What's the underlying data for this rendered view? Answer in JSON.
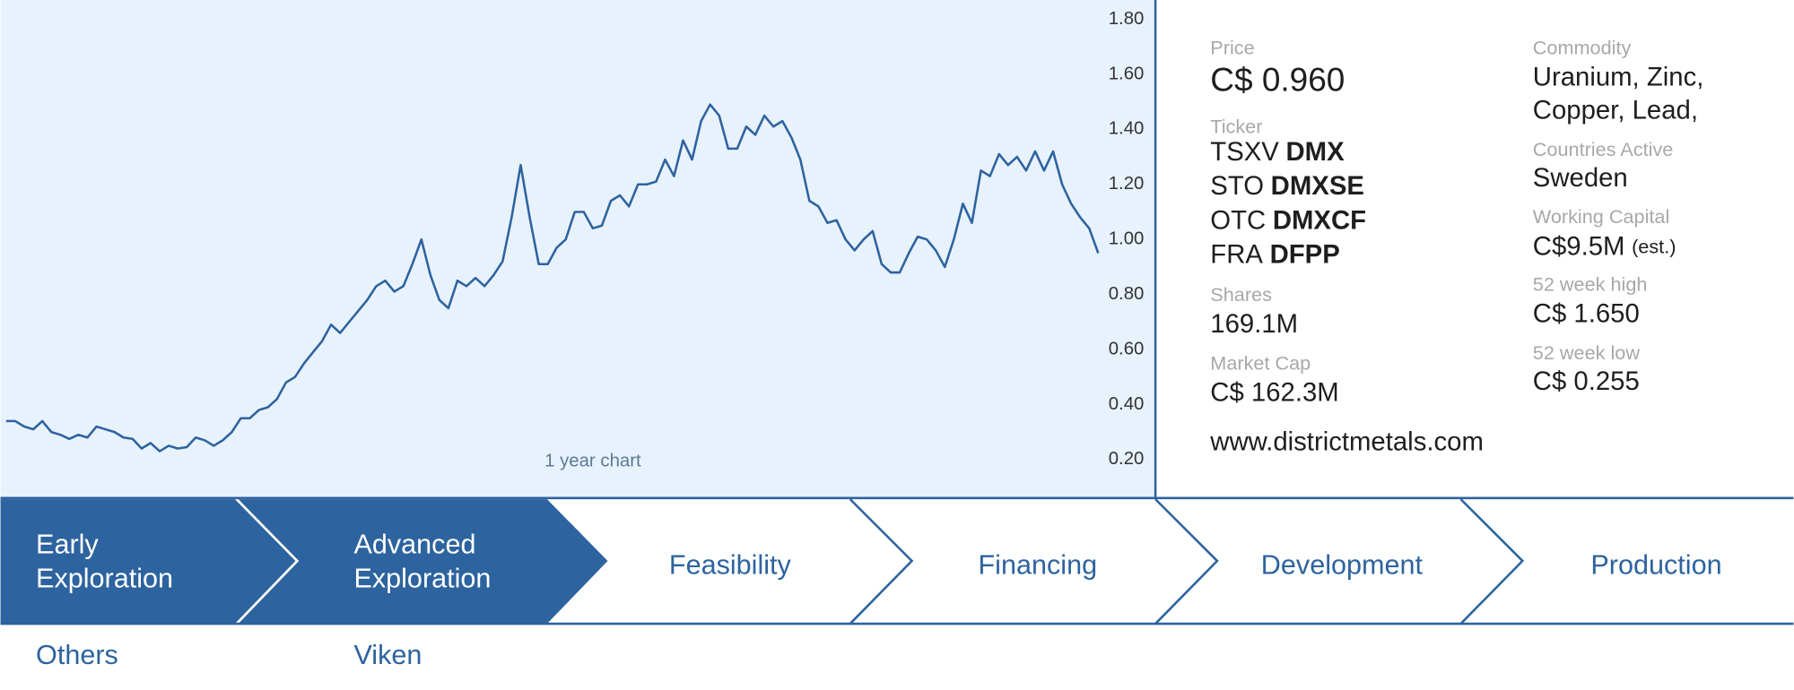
{
  "chart_data": {
    "type": "line",
    "note": "1 year chart",
    "color": "#2d639e",
    "values": [
      0.34,
      0.34,
      0.32,
      0.31,
      0.34,
      0.3,
      0.29,
      0.275,
      0.29,
      0.28,
      0.32,
      0.31,
      0.3,
      0.28,
      0.275,
      0.24,
      0.26,
      0.23,
      0.25,
      0.24,
      0.245,
      0.28,
      0.27,
      0.25,
      0.27,
      0.3,
      0.35,
      0.35,
      0.38,
      0.39,
      0.42,
      0.48,
      0.5,
      0.55,
      0.59,
      0.63,
      0.69,
      0.66,
      0.7,
      0.74,
      0.78,
      0.83,
      0.85,
      0.81,
      0.83,
      0.91,
      1.0,
      0.87,
      0.78,
      0.75,
      0.85,
      0.83,
      0.86,
      0.83,
      0.87,
      0.92,
      1.08,
      1.27,
      1.08,
      0.91,
      0.91,
      0.97,
      1.0,
      1.1,
      1.1,
      1.04,
      1.05,
      1.14,
      1.16,
      1.12,
      1.2,
      1.2,
      1.21,
      1.29,
      1.23,
      1.36,
      1.29,
      1.43,
      1.49,
      1.45,
      1.33,
      1.33,
      1.41,
      1.38,
      1.45,
      1.41,
      1.43,
      1.37,
      1.29,
      1.14,
      1.12,
      1.06,
      1.07,
      1.0,
      0.96,
      1.0,
      1.03,
      0.91,
      0.88,
      0.88,
      0.95,
      1.01,
      1.0,
      0.96,
      0.9,
      1.0,
      1.13,
      1.06,
      1.25,
      1.23,
      1.31,
      1.27,
      1.3,
      1.25,
      1.32,
      1.25,
      1.32,
      1.2,
      1.13,
      1.08,
      1.04,
      0.95
    ],
    "ylim": [
      0.06,
      1.87
    ],
    "yticks": [
      {
        "value": 1.8,
        "label": "1.80"
      },
      {
        "value": 1.6,
        "label": "1.60"
      },
      {
        "value": 1.4,
        "label": "1.40"
      },
      {
        "value": 1.2,
        "label": "1.20"
      },
      {
        "value": 1.0,
        "label": "1.00"
      },
      {
        "value": 0.8,
        "label": "0.80"
      },
      {
        "value": 0.6,
        "label": "0.60"
      },
      {
        "value": 0.4,
        "label": "0.40"
      },
      {
        "value": 0.2,
        "label": "0.20"
      }
    ]
  },
  "info": {
    "price": {
      "label": "Price",
      "value": "C$ 0.960"
    },
    "ticker": {
      "label": "Ticker",
      "entries": [
        {
          "exchange": "TSXV",
          "symbol": "DMX"
        },
        {
          "exchange": "STO",
          "symbol": "DMXSE"
        },
        {
          "exchange": "OTC",
          "symbol": "DMXCF"
        },
        {
          "exchange": "FRA",
          "symbol": "DFPP"
        }
      ]
    },
    "shares": {
      "label": "Shares",
      "value": "169.1M"
    },
    "market_cap": {
      "label": "Market Cap",
      "value": "C$ 162.3M"
    },
    "website": "www.districtmetals.com",
    "commodity": {
      "label": "Commodity",
      "lines": [
        "Uranium, Zinc,",
        "Copper, Lead,"
      ]
    },
    "countries": {
      "label": "Countries Active",
      "value": "Sweden"
    },
    "working_capital": {
      "label": "Working Capital",
      "value": "C$9.5M",
      "note": "(est.)"
    },
    "high_52": {
      "label": "52 week high",
      "value": "C$ 1.650"
    },
    "low_52": {
      "label": "52 week low",
      "value": "C$ 0.255"
    }
  },
  "stages": [
    {
      "lines": [
        "Early",
        "Exploration"
      ],
      "projects": "Others"
    },
    {
      "lines": [
        "Advanced",
        "Exploration"
      ],
      "projects": "Viken"
    },
    {
      "lines": [
        "Feasibility"
      ]
    },
    {
      "lines": [
        "Financing"
      ]
    },
    {
      "lines": [
        "Development"
      ]
    },
    {
      "lines": [
        "Production"
      ]
    }
  ]
}
